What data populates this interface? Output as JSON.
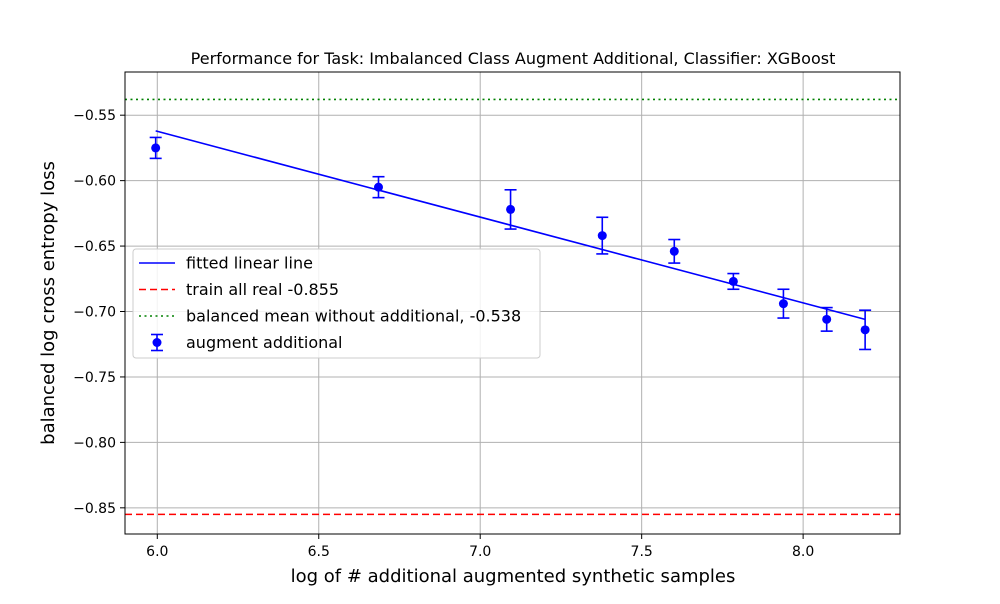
{
  "chart_data": {
    "type": "scatter",
    "title": "Performance for Task: Imbalanced Class Augment Additional, Classifier: XGBoost",
    "xlabel": "log of # additional augmented synthetic samples",
    "ylabel": "balanced log cross entropy loss",
    "xlim": [
      5.9,
      8.3
    ],
    "ylim": [
      -0.87,
      -0.517
    ],
    "x_ticks": [
      6.0,
      6.5,
      7.0,
      7.5,
      8.0
    ],
    "x_tick_labels": [
      "6.0",
      "6.5",
      "7.0",
      "7.5",
      "8.0"
    ],
    "y_ticks": [
      -0.55,
      -0.6,
      -0.65,
      -0.7,
      -0.75,
      -0.8,
      -0.85
    ],
    "y_tick_labels": [
      "−0.55",
      "−0.60",
      "−0.65",
      "−0.70",
      "−0.75",
      "−0.80",
      "−0.85"
    ],
    "grid": true,
    "legend_position": "center-left",
    "series": [
      {
        "name": "augment additional",
        "kind": "errorbar",
        "color": "#0000ff",
        "x": [
          5.995,
          6.685,
          7.094,
          7.378,
          7.601,
          7.784,
          7.939,
          8.073,
          8.192
        ],
        "y": [
          -0.575,
          -0.605,
          -0.622,
          -0.642,
          -0.654,
          -0.677,
          -0.694,
          -0.706,
          -0.714
        ],
        "yerr": [
          0.008,
          0.008,
          0.015,
          0.014,
          0.009,
          0.006,
          0.011,
          0.009,
          0.015
        ]
      },
      {
        "name": "fitted linear line",
        "kind": "line",
        "color": "#0000ff",
        "x": [
          5.995,
          8.192
        ],
        "y": [
          -0.562,
          -0.706
        ]
      },
      {
        "name": "train all real -0.855",
        "kind": "hline",
        "style": "dashed",
        "color": "#ff0000",
        "y": -0.855
      },
      {
        "name": "balanced mean without additional, -0.538",
        "kind": "hline",
        "style": "dotted",
        "color": "#008000",
        "y": -0.538
      }
    ],
    "legend_order": [
      1,
      2,
      3,
      0
    ]
  }
}
